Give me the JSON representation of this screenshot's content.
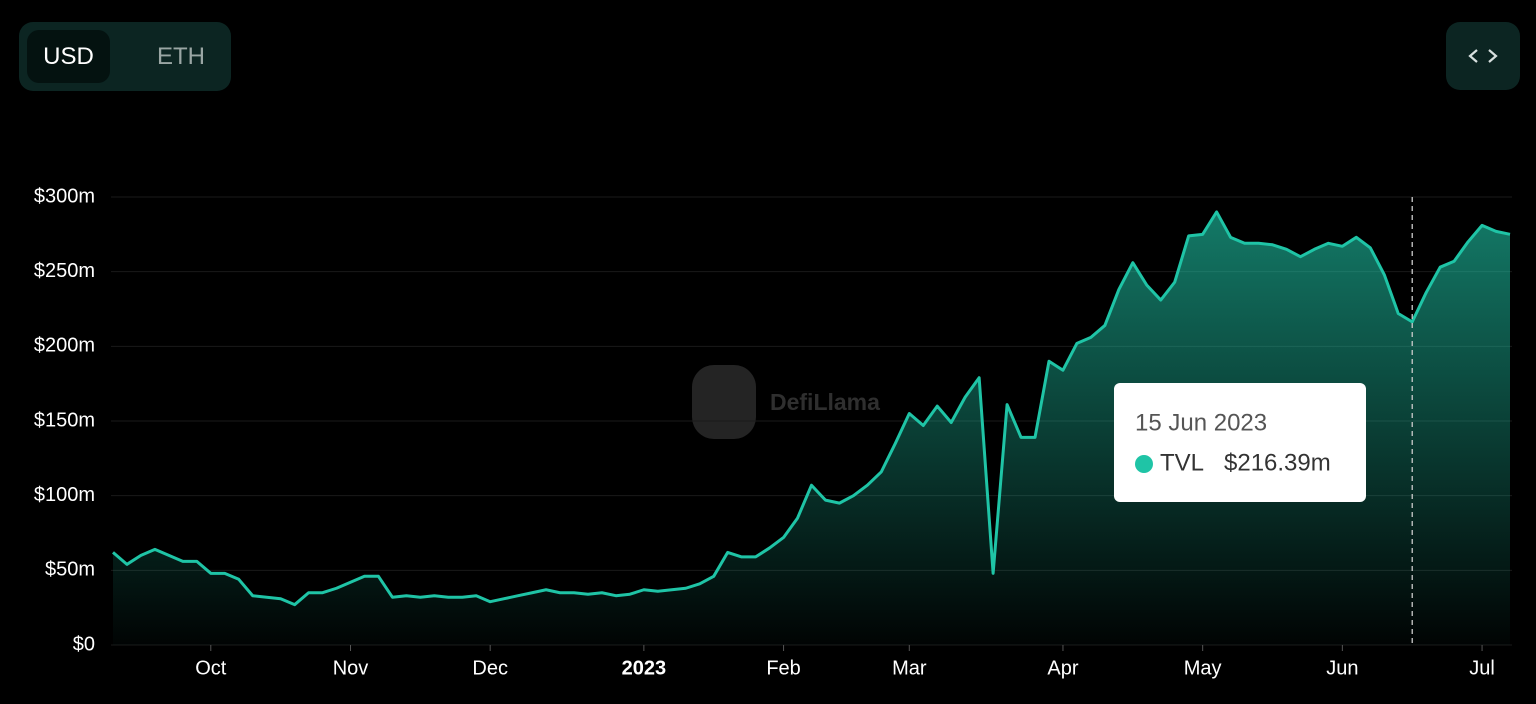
{
  "currency_toggle": {
    "options": [
      "USD",
      "ETH"
    ],
    "selected": "USD"
  },
  "watermark": "DefiLlama",
  "chart_data": {
    "type": "area",
    "categories": [
      null,
      null,
      null,
      null,
      null,
      null,
      null,
      "Oct",
      null,
      null,
      null,
      null,
      null,
      null,
      null,
      null,
      null,
      "Nov",
      null,
      null,
      null,
      null,
      null,
      null,
      null,
      null,
      null,
      "Dec",
      null,
      null,
      null,
      null,
      null,
      null,
      null,
      null,
      null,
      null,
      "2023",
      null,
      null,
      null,
      null,
      null,
      null,
      null,
      null,
      null,
      "Feb",
      null,
      null,
      null,
      null,
      null,
      null,
      null,
      null,
      "Mar",
      null,
      null,
      null,
      null,
      null,
      null,
      null,
      null,
      null,
      null,
      "Apr",
      null,
      null,
      null,
      null,
      null,
      null,
      null,
      null,
      null,
      "May",
      null,
      null,
      null,
      null,
      null,
      null,
      null,
      null,
      null,
      "Jun",
      null,
      null,
      null,
      null,
      null,
      null,
      null,
      null,
      null,
      "Jul",
      null,
      null
    ],
    "series": [
      {
        "name": "TVL",
        "color": "#1fc4a6",
        "values": [
          62,
          54,
          60,
          64,
          60,
          56,
          56,
          48,
          48,
          44,
          33,
          32,
          31,
          27,
          35,
          35,
          38,
          42,
          46,
          46,
          32,
          33,
          32,
          33,
          32,
          32,
          33,
          29,
          31,
          33,
          35,
          37,
          35,
          35,
          34,
          35,
          33,
          34,
          37,
          36,
          37,
          38,
          41,
          46,
          62,
          59,
          59,
          65,
          72,
          85,
          107,
          97,
          95,
          100,
          107,
          116,
          135,
          155,
          147,
          160,
          149,
          166,
          179,
          48,
          161,
          139,
          139,
          190,
          184,
          202,
          206,
          214,
          238,
          256,
          241,
          231,
          243,
          274,
          275,
          290,
          273,
          269,
          269,
          268,
          265,
          260,
          265,
          269,
          267,
          273,
          266,
          248,
          222,
          216.39,
          236,
          253,
          257,
          270,
          281,
          277,
          275
        ]
      }
    ],
    "ylim": [
      0,
      300
    ],
    "yticks": [
      {
        "value": 0,
        "label": "$0"
      },
      {
        "value": 50,
        "label": "$50m"
      },
      {
        "value": 100,
        "label": "$100m"
      },
      {
        "value": 150,
        "label": "$150m"
      },
      {
        "value": 200,
        "label": "$200m"
      },
      {
        "value": 250,
        "label": "$250m"
      },
      {
        "value": 300,
        "label": "$300m"
      }
    ],
    "grid": true,
    "tooltip": {
      "title": "15 Jun 2023",
      "value": 216.39,
      "value_label": "$216.39m"
    }
  }
}
